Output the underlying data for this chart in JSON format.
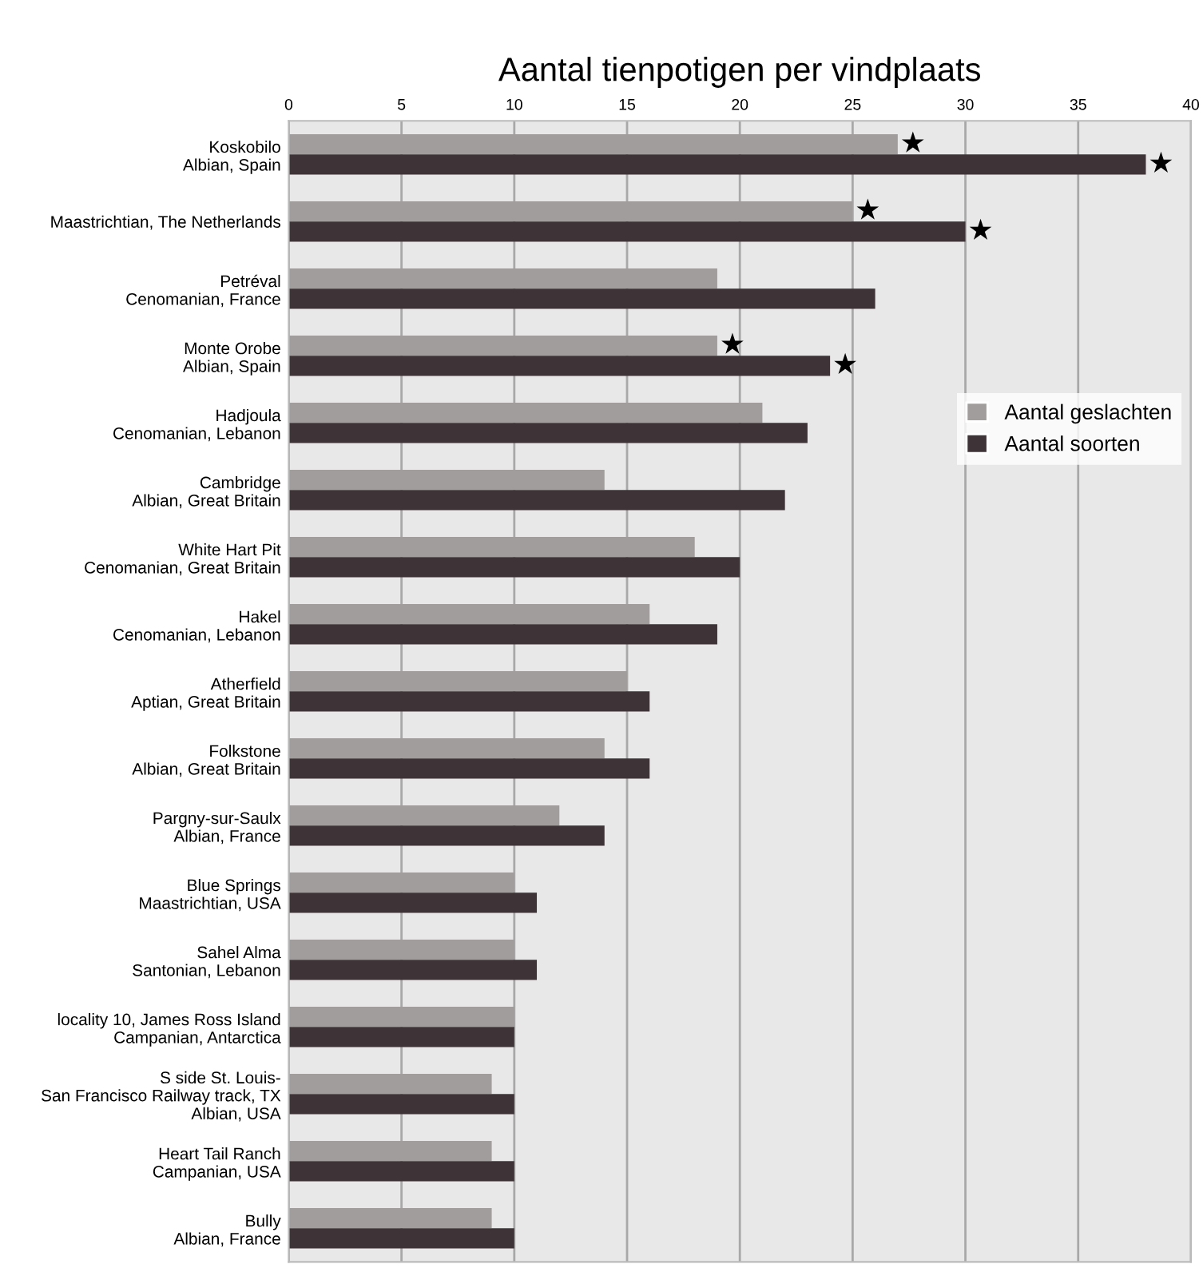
{
  "chart_data": {
    "type": "bar",
    "orientation": "horizontal",
    "title": "Aantal tienpotigen per vindplaats",
    "categories": [
      "Koskobilo\nAlbian, Spain",
      "Maastrichtian, The Netherlands",
      "Petréval\nCenomanian, France",
      "Monte Orobe\nAlbian, Spain",
      "Hadjoula\nCenomanian, Lebanon",
      "Cambridge\nAlbian, Great Britain",
      "White Hart Pit\nCenomanian, Great Britain",
      "Hakel\nCenomanian, Lebanon",
      "Atherfield\nAptian, Great Britain",
      "Folkstone\nAlbian, Great Britain",
      "Pargny-sur-Saulx\nAlbian, France",
      "Blue Springs\nMaastrichtian, USA",
      "Sahel Alma\nSantonian, Lebanon",
      "locality 10, James Ross Island\nCampanian, Antarctica",
      "S side St. Louis-\nSan Francisco Railway track, TX\nAlbian, USA",
      "Heart Tail Ranch\nCampanian, USA",
      "Bully\nAlbian, France"
    ],
    "series": [
      {
        "name": "Aantal geslachten",
        "color": "#a19d9d",
        "values": [
          27,
          25,
          19,
          19,
          21,
          14,
          18,
          16,
          15,
          14,
          12,
          10,
          10,
          10,
          9,
          9,
          9
        ],
        "value_labels": [
          "★",
          "★",
          null,
          "★",
          null,
          null,
          null,
          null,
          null,
          null,
          null,
          null,
          null,
          null,
          null,
          null,
          null
        ]
      },
      {
        "name": "Aantal soorten",
        "color": "#3e3337",
        "values": [
          38,
          30,
          26,
          24,
          23,
          22,
          20,
          19,
          16,
          16,
          14,
          11,
          11,
          10,
          10,
          10,
          10
        ],
        "value_labels": [
          "★",
          "★",
          null,
          "★",
          null,
          null,
          null,
          null,
          null,
          null,
          null,
          null,
          null,
          null,
          null,
          null,
          null
        ]
      }
    ],
    "xlim": [
      0,
      40
    ],
    "xticks": [
      0,
      5,
      10,
      15,
      20,
      25,
      30,
      35,
      40
    ],
    "grid": "x",
    "legend": "right"
  }
}
